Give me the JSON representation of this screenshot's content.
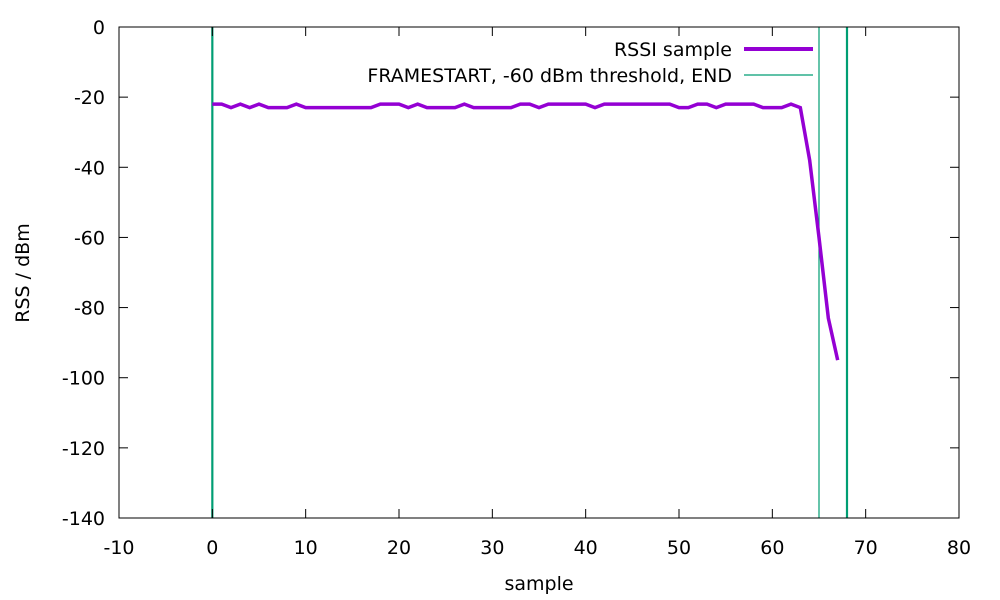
{
  "chart_data": {
    "type": "line",
    "title": "",
    "xlabel": "sample",
    "ylabel": "RSS / dBm",
    "xlim": [
      -10,
      80
    ],
    "ylim": [
      -140,
      0
    ],
    "xticks": [
      -10,
      0,
      10,
      20,
      30,
      40,
      50,
      60,
      70,
      80
    ],
    "yticks": [
      0,
      -20,
      -40,
      -60,
      -80,
      -100,
      -120,
      -140
    ],
    "xtick_labels": [
      "-10",
      "0",
      "10",
      "20",
      "30",
      "40",
      "50",
      "60",
      "70",
      "80"
    ],
    "ytick_labels": [
      "0",
      "-20",
      "-40",
      "-60",
      "-80",
      "-100",
      "-120",
      "-140"
    ],
    "grid": false,
    "legend_position": "top-right",
    "series": [
      {
        "name": "RSSI sample",
        "color": "#9400d3",
        "x": [
          0,
          1,
          2,
          3,
          4,
          5,
          6,
          7,
          8,
          9,
          10,
          11,
          12,
          13,
          14,
          15,
          16,
          17,
          18,
          19,
          20,
          21,
          22,
          23,
          24,
          25,
          26,
          27,
          28,
          29,
          30,
          31,
          32,
          33,
          34,
          35,
          36,
          37,
          38,
          39,
          40,
          41,
          42,
          43,
          44,
          45,
          46,
          47,
          48,
          49,
          50,
          51,
          52,
          53,
          54,
          55,
          56,
          57,
          58,
          59,
          60,
          61,
          62,
          63,
          64,
          65,
          66,
          67
        ],
        "values": [
          -22,
          -22,
          -23,
          -22,
          -23,
          -22,
          -23,
          -23,
          -23,
          -22,
          -23,
          -23,
          -23,
          -23,
          -23,
          -23,
          -23,
          -23,
          -22,
          -22,
          -22,
          -23,
          -22,
          -23,
          -23,
          -23,
          -23,
          -22,
          -23,
          -23,
          -23,
          -23,
          -23,
          -22,
          -22,
          -23,
          -22,
          -22,
          -22,
          -22,
          -22,
          -23,
          -22,
          -22,
          -22,
          -22,
          -22,
          -22,
          -22,
          -22,
          -23,
          -23,
          -22,
          -22,
          -23,
          -22,
          -22,
          -22,
          -22,
          -23,
          -23,
          -23,
          -22,
          -23,
          -38,
          -60,
          -83,
          -95
        ]
      }
    ],
    "vertical_markers": {
      "name": "FRAMESTART, -60 dBm threshold, END",
      "color": "#009e73",
      "x": [
        0,
        65,
        68
      ]
    }
  }
}
